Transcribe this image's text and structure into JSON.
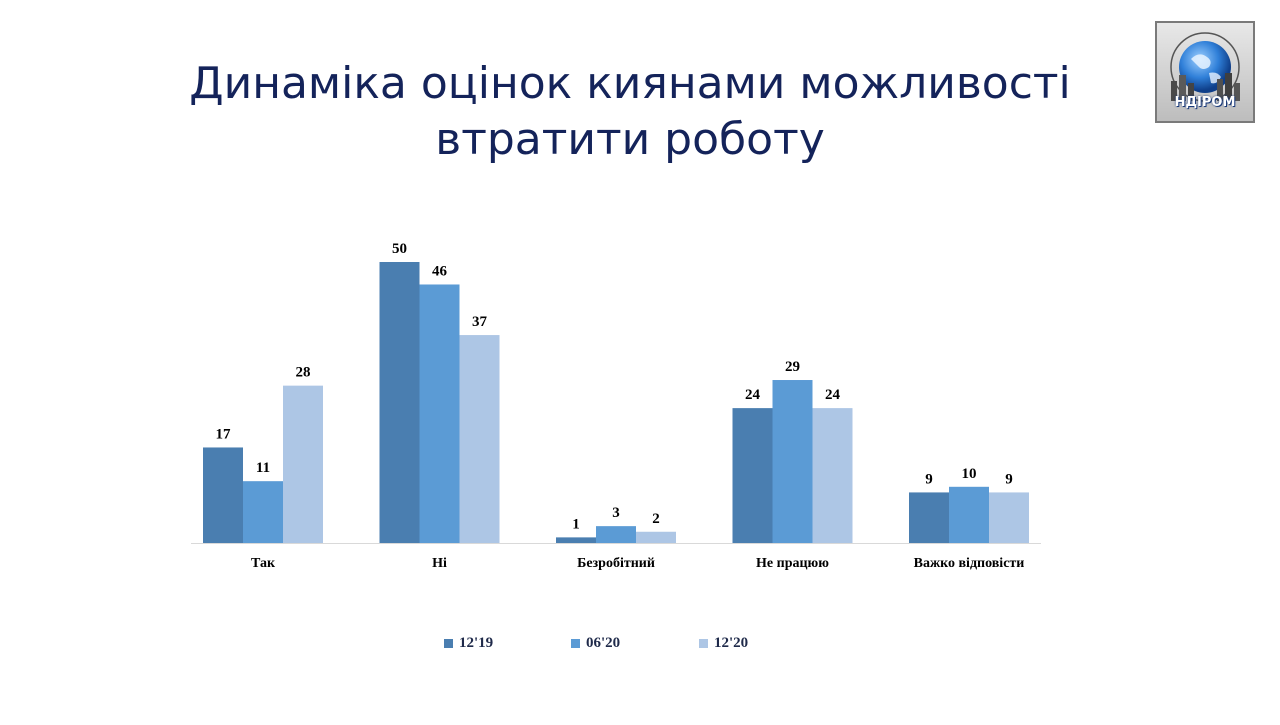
{
  "slide": {
    "title": "Динаміка оцінок киянами можливості втратити роботу"
  },
  "logo": {
    "label": "НДІРОМ"
  },
  "colors": {
    "title": "#14235a",
    "series": [
      "#4a7eb0",
      "#5b9bd5",
      "#adc6e5"
    ]
  },
  "chart_data": {
    "type": "bar",
    "title": "",
    "xlabel": "",
    "ylabel": "",
    "ylim": [
      0,
      50
    ],
    "grid": false,
    "legend_position": "bottom",
    "categories": [
      "Так",
      "Ні",
      "Безробітний",
      "Не працюю",
      "Важко відповісти"
    ],
    "series": [
      {
        "name": "12'19",
        "color": "#4a7eb0",
        "values": [
          17,
          50,
          1,
          24,
          9
        ]
      },
      {
        "name": "06'20",
        "color": "#5b9bd5",
        "values": [
          11,
          46,
          3,
          29,
          10
        ]
      },
      {
        "name": "12'20",
        "color": "#adc6e5",
        "values": [
          28,
          37,
          2,
          24,
          9
        ]
      }
    ]
  }
}
